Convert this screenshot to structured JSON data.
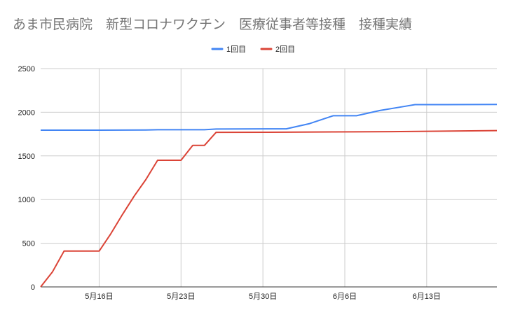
{
  "chart_data": {
    "type": "line",
    "title": "あま市民病院　新型コロナワクチン　医療従事者等接種　接種実績",
    "xlabel": "",
    "ylabel": "",
    "x_range": [
      "2021-05-11",
      "2021-06-19"
    ],
    "ylim": [
      0,
      2500
    ],
    "yticks": [
      0,
      500,
      1000,
      1500,
      2000,
      2500
    ],
    "xticks": [
      {
        "date": "2021-05-16",
        "label": "5月16日"
      },
      {
        "date": "2021-05-23",
        "label": "5月23日"
      },
      {
        "date": "2021-05-30",
        "label": "5月30日"
      },
      {
        "date": "2021-06-06",
        "label": "6月6日"
      },
      {
        "date": "2021-06-13",
        "label": "6月13日"
      }
    ],
    "grid": true,
    "legend_position": "top",
    "series": [
      {
        "name": "1回目",
        "color": "#4285f4",
        "points": [
          [
            "2021-05-11",
            1795
          ],
          [
            "2021-05-16",
            1795
          ],
          [
            "2021-05-20",
            1797
          ],
          [
            "2021-05-21",
            1800
          ],
          [
            "2021-05-25",
            1800
          ],
          [
            "2021-05-26",
            1808
          ],
          [
            "2021-06-01",
            1810
          ],
          [
            "2021-06-03",
            1870
          ],
          [
            "2021-06-05",
            1960
          ],
          [
            "2021-06-07",
            1960
          ],
          [
            "2021-06-09",
            2020
          ],
          [
            "2021-06-11",
            2065
          ],
          [
            "2021-06-12",
            2087
          ],
          [
            "2021-06-14",
            2087
          ],
          [
            "2021-06-19",
            2090
          ]
        ]
      },
      {
        "name": "2回目",
        "color": "#db4437",
        "points": [
          [
            "2021-05-11",
            0
          ],
          [
            "2021-05-12",
            170
          ],
          [
            "2021-05-13",
            410
          ],
          [
            "2021-05-15",
            410
          ],
          [
            "2021-05-16",
            410
          ],
          [
            "2021-05-17",
            610
          ],
          [
            "2021-05-18",
            830
          ],
          [
            "2021-05-19",
            1040
          ],
          [
            "2021-05-20",
            1230
          ],
          [
            "2021-05-21",
            1450
          ],
          [
            "2021-05-23",
            1450
          ],
          [
            "2021-05-24",
            1620
          ],
          [
            "2021-05-25",
            1620
          ],
          [
            "2021-05-26",
            1770
          ],
          [
            "2021-06-01",
            1772
          ],
          [
            "2021-06-05",
            1775
          ],
          [
            "2021-06-10",
            1778
          ],
          [
            "2021-06-19",
            1790
          ]
        ]
      }
    ]
  }
}
